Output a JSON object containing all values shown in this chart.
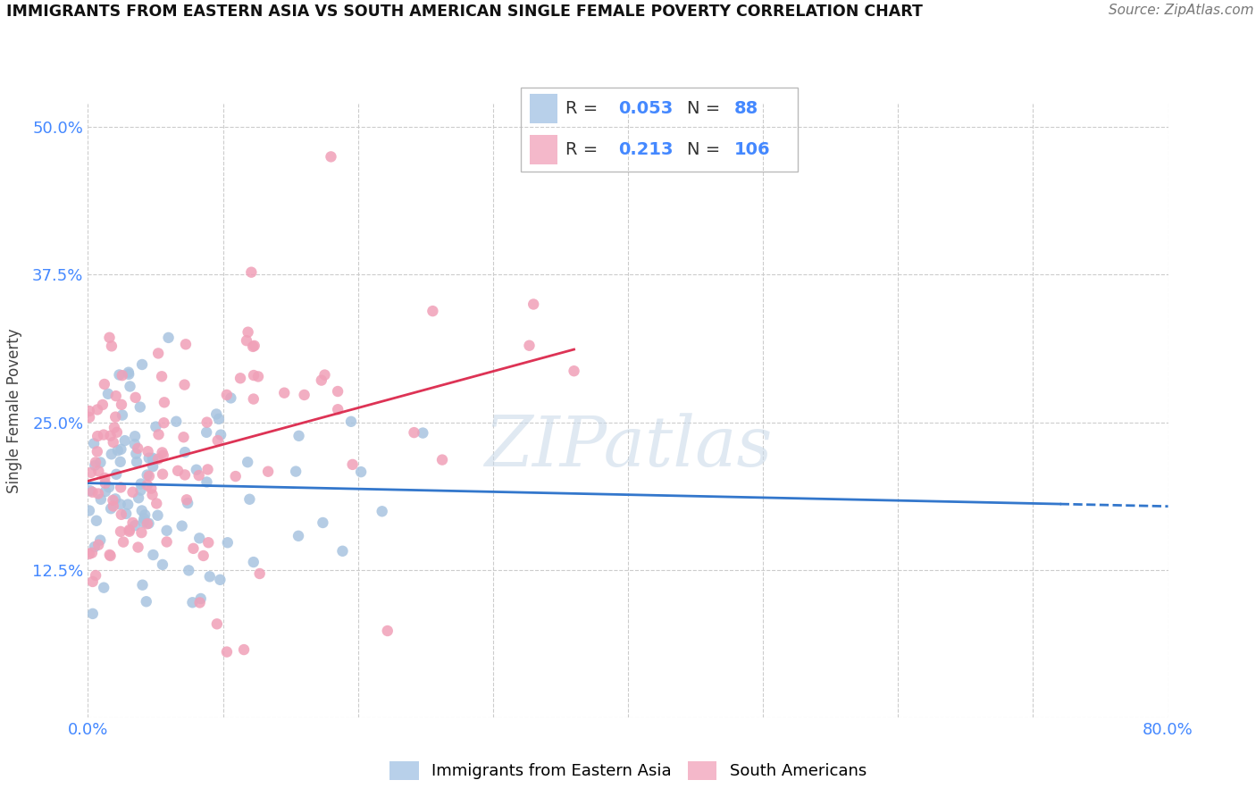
{
  "title": "IMMIGRANTS FROM EASTERN ASIA VS SOUTH AMERICAN SINGLE FEMALE POVERTY CORRELATION CHART",
  "source": "Source: ZipAtlas.com",
  "ylabel": "Single Female Poverty",
  "legend_blue_label": "Immigrants from Eastern Asia",
  "legend_pink_label": "South Americans",
  "r_blue": "0.053",
  "n_blue": "88",
  "r_pink": "0.213",
  "n_pink": "106",
  "blue_scatter_color": "#a8c4e0",
  "pink_scatter_color": "#f0a0b8",
  "blue_line_color": "#3377cc",
  "pink_line_color": "#dd3355",
  "blue_legend_color": "#b8d0ea",
  "pink_legend_color": "#f4b8ca",
  "tick_color": "#4488ff",
  "ylabel_color": "#444444",
  "title_color": "#111111",
  "source_color": "#777777",
  "watermark_color": "#c8d8e8",
  "grid_color": "#cccccc",
  "xlim": [
    0.0,
    0.8
  ],
  "ylim": [
    0.0,
    0.52
  ],
  "xticks": [
    0.0,
    0.1,
    0.2,
    0.3,
    0.4,
    0.5,
    0.6,
    0.7,
    0.8
  ],
  "yticks": [
    0.0,
    0.125,
    0.25,
    0.375,
    0.5
  ],
  "seed_blue": 7,
  "seed_pink": 99,
  "n_blue_pts": 88,
  "n_pink_pts": 106
}
